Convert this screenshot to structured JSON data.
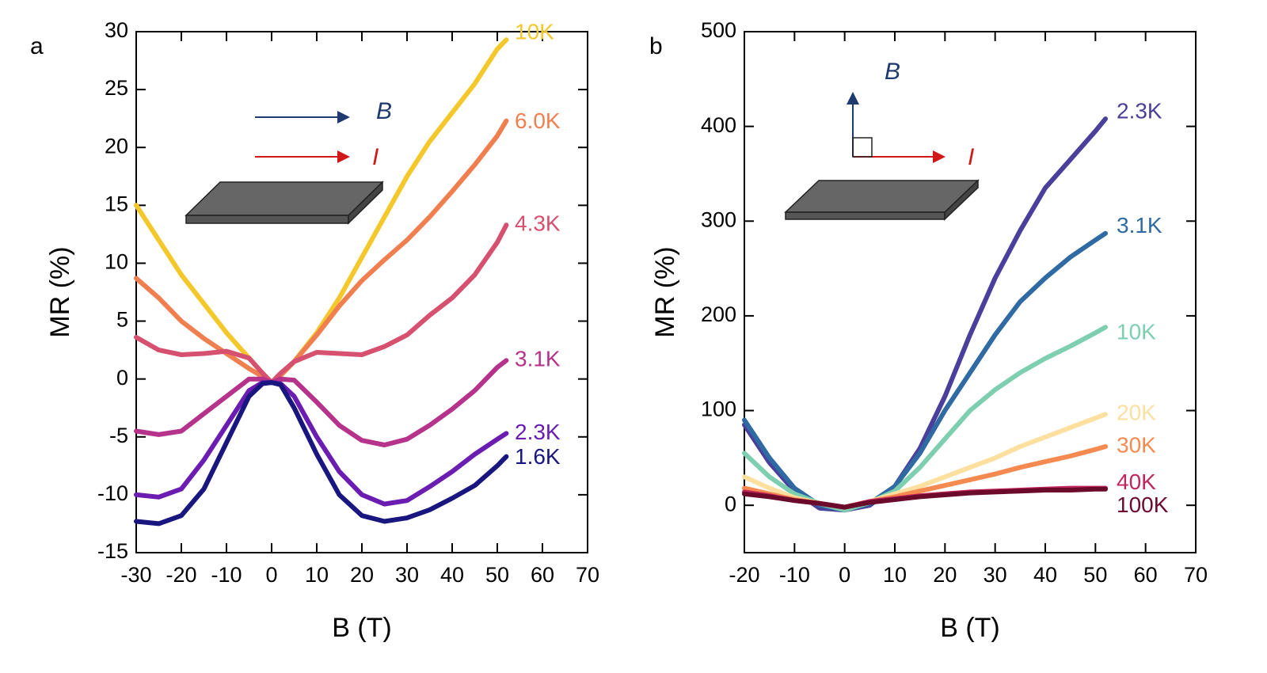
{
  "chart_data": [
    {
      "type": "line",
      "panel_label": "a",
      "xlabel": "B (T)",
      "ylabel": "MR (%)",
      "annotations": [
        "B",
        "I"
      ],
      "x": [
        -30,
        -25,
        -20,
        -15,
        -10,
        -5,
        -2,
        0,
        2,
        5,
        10,
        15,
        20,
        25,
        30,
        35,
        40,
        45,
        50,
        52
      ],
      "xlim": [
        -30,
        70
      ],
      "ylim": [
        -15,
        30
      ],
      "xticks": [
        -30,
        -20,
        -10,
        0,
        10,
        20,
        30,
        40,
        50,
        60,
        70
      ],
      "yticks": [
        -15,
        -10,
        -5,
        0,
        5,
        10,
        15,
        20,
        25,
        30
      ],
      "series": [
        {
          "name": "10K",
          "color": "#f4c72a",
          "values": [
            15,
            12,
            9,
            6.5,
            4,
            1.8,
            0.5,
            -0.3,
            0.3,
            1.5,
            4,
            7,
            10.5,
            14,
            17.5,
            20.5,
            23,
            25.5,
            28.5,
            29.3
          ]
        },
        {
          "name": "6.0K",
          "color": "#f07f50",
          "values": [
            8.7,
            7,
            5,
            3.5,
            2.2,
            0.9,
            0.2,
            -0.3,
            0.3,
            1.5,
            3.8,
            6.3,
            8.5,
            10.3,
            12,
            14,
            16.2,
            18.5,
            21,
            22.3
          ]
        },
        {
          "name": "4.3K",
          "color": "#d6506f",
          "values": [
            3.6,
            2.5,
            2.1,
            2.2,
            2.4,
            1.8,
            0.5,
            -0.3,
            0.5,
            1.5,
            2.3,
            2.2,
            2.1,
            2.8,
            3.8,
            5.5,
            7,
            9,
            11.8,
            13.3
          ]
        },
        {
          "name": "3.1K",
          "color": "#b5338a",
          "values": [
            -4.5,
            -4.8,
            -4.5,
            -3,
            -1.5,
            0,
            0,
            -0.3,
            0,
            -0.1,
            -2,
            -4,
            -5.3,
            -5.7,
            -5.2,
            -4,
            -2.6,
            -1,
            1,
            1.6
          ]
        },
        {
          "name": "2.3K",
          "color": "#6a1db0",
          "values": [
            -10,
            -10.2,
            -9.5,
            -7,
            -4,
            -1,
            -0.3,
            -0.3,
            -0.4,
            -1.5,
            -5,
            -8,
            -10,
            -10.8,
            -10.5,
            -9.3,
            -8,
            -6.5,
            -5.2,
            -4.7
          ]
        },
        {
          "name": "1.6K",
          "color": "#1a1680",
          "values": [
            -12.3,
            -12.5,
            -11.8,
            -9.5,
            -5.5,
            -1.5,
            -0.4,
            -0.3,
            -0.5,
            -2.5,
            -6.5,
            -10,
            -11.8,
            -12.3,
            -12,
            -11.3,
            -10.3,
            -9.2,
            -7.5,
            -6.7
          ]
        }
      ]
    },
    {
      "type": "line",
      "panel_label": "b",
      "xlabel": "B (T)",
      "ylabel": "MR (%)",
      "annotations": [
        "B",
        "I"
      ],
      "x": [
        -20,
        -15,
        -10,
        -5,
        0,
        5,
        10,
        15,
        20,
        25,
        30,
        35,
        40,
        45,
        50,
        52
      ],
      "xlim": [
        -20,
        70
      ],
      "ylim": [
        -50,
        500
      ],
      "xticks": [
        -20,
        -10,
        0,
        10,
        20,
        30,
        40,
        50,
        60,
        70
      ],
      "yticks": [
        0,
        100,
        200,
        300,
        400,
        500
      ],
      "series": [
        {
          "name": "2.3K",
          "color": "#4a3f9a",
          "values": [
            85,
            45,
            15,
            -3,
            -5,
            0,
            20,
            60,
            115,
            180,
            240,
            290,
            335,
            365,
            395,
            408
          ]
        },
        {
          "name": "3.1K",
          "color": "#2f6aa3",
          "values": [
            90,
            50,
            18,
            0,
            -5,
            2,
            20,
            55,
            100,
            140,
            180,
            215,
            240,
            262,
            280,
            287
          ]
        },
        {
          "name": "10K",
          "color": "#7dcfb0",
          "values": [
            55,
            30,
            12,
            2,
            -5,
            3,
            15,
            40,
            70,
            100,
            122,
            140,
            155,
            168,
            182,
            188
          ]
        },
        {
          "name": "20K",
          "color": "#fde0a0",
          "values": [
            30,
            18,
            8,
            2,
            -2,
            4,
            12,
            20,
            30,
            40,
            50,
            62,
            72,
            82,
            92,
            96
          ]
        },
        {
          "name": "30K",
          "color": "#f58a50",
          "values": [
            18,
            12,
            6,
            2,
            -2,
            4,
            9,
            15,
            21,
            27,
            33,
            40,
            46,
            52,
            59,
            62
          ]
        },
        {
          "name": "40K",
          "color": "#c0265a",
          "values": [
            14,
            10,
            5,
            2,
            -2,
            4,
            7,
            10,
            12,
            14,
            15,
            16,
            17,
            18,
            18,
            18
          ]
        },
        {
          "name": "100K",
          "color": "#6b0a2a",
          "values": [
            12,
            9,
            5,
            2,
            -2,
            3,
            6,
            9,
            11,
            13,
            14,
            15,
            16,
            16,
            17,
            17
          ]
        }
      ]
    }
  ]
}
